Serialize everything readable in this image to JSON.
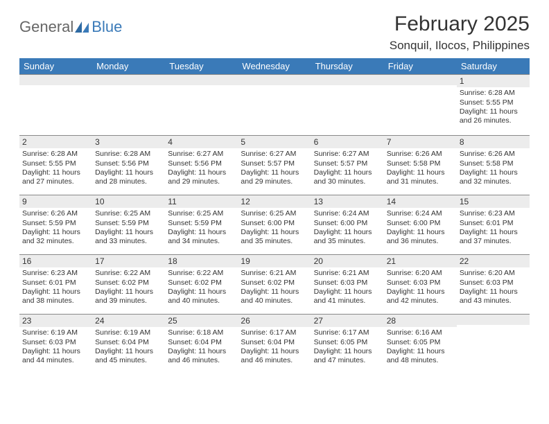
{
  "logo": {
    "general": "General",
    "blue": "Blue"
  },
  "title": "February 2025",
  "location": "Sonquil, Ilocos, Philippines",
  "colors": {
    "header_bg": "#3a7ab8",
    "header_text": "#ffffff",
    "daynum_bg": "#ececec",
    "text": "#333333",
    "rule": "#888888"
  },
  "weekdays": [
    "Sunday",
    "Monday",
    "Tuesday",
    "Wednesday",
    "Thursday",
    "Friday",
    "Saturday"
  ],
  "weeks": [
    [
      {
        "n": "",
        "sr": "",
        "ss": "",
        "dl": ""
      },
      {
        "n": "",
        "sr": "",
        "ss": "",
        "dl": ""
      },
      {
        "n": "",
        "sr": "",
        "ss": "",
        "dl": ""
      },
      {
        "n": "",
        "sr": "",
        "ss": "",
        "dl": ""
      },
      {
        "n": "",
        "sr": "",
        "ss": "",
        "dl": ""
      },
      {
        "n": "",
        "sr": "",
        "ss": "",
        "dl": ""
      },
      {
        "n": "1",
        "sr": "Sunrise: 6:28 AM",
        "ss": "Sunset: 5:55 PM",
        "dl": "Daylight: 11 hours and 26 minutes."
      }
    ],
    [
      {
        "n": "2",
        "sr": "Sunrise: 6:28 AM",
        "ss": "Sunset: 5:55 PM",
        "dl": "Daylight: 11 hours and 27 minutes."
      },
      {
        "n": "3",
        "sr": "Sunrise: 6:28 AM",
        "ss": "Sunset: 5:56 PM",
        "dl": "Daylight: 11 hours and 28 minutes."
      },
      {
        "n": "4",
        "sr": "Sunrise: 6:27 AM",
        "ss": "Sunset: 5:56 PM",
        "dl": "Daylight: 11 hours and 29 minutes."
      },
      {
        "n": "5",
        "sr": "Sunrise: 6:27 AM",
        "ss": "Sunset: 5:57 PM",
        "dl": "Daylight: 11 hours and 29 minutes."
      },
      {
        "n": "6",
        "sr": "Sunrise: 6:27 AM",
        "ss": "Sunset: 5:57 PM",
        "dl": "Daylight: 11 hours and 30 minutes."
      },
      {
        "n": "7",
        "sr": "Sunrise: 6:26 AM",
        "ss": "Sunset: 5:58 PM",
        "dl": "Daylight: 11 hours and 31 minutes."
      },
      {
        "n": "8",
        "sr": "Sunrise: 6:26 AM",
        "ss": "Sunset: 5:58 PM",
        "dl": "Daylight: 11 hours and 32 minutes."
      }
    ],
    [
      {
        "n": "9",
        "sr": "Sunrise: 6:26 AM",
        "ss": "Sunset: 5:59 PM",
        "dl": "Daylight: 11 hours and 32 minutes."
      },
      {
        "n": "10",
        "sr": "Sunrise: 6:25 AM",
        "ss": "Sunset: 5:59 PM",
        "dl": "Daylight: 11 hours and 33 minutes."
      },
      {
        "n": "11",
        "sr": "Sunrise: 6:25 AM",
        "ss": "Sunset: 5:59 PM",
        "dl": "Daylight: 11 hours and 34 minutes."
      },
      {
        "n": "12",
        "sr": "Sunrise: 6:25 AM",
        "ss": "Sunset: 6:00 PM",
        "dl": "Daylight: 11 hours and 35 minutes."
      },
      {
        "n": "13",
        "sr": "Sunrise: 6:24 AM",
        "ss": "Sunset: 6:00 PM",
        "dl": "Daylight: 11 hours and 35 minutes."
      },
      {
        "n": "14",
        "sr": "Sunrise: 6:24 AM",
        "ss": "Sunset: 6:00 PM",
        "dl": "Daylight: 11 hours and 36 minutes."
      },
      {
        "n": "15",
        "sr": "Sunrise: 6:23 AM",
        "ss": "Sunset: 6:01 PM",
        "dl": "Daylight: 11 hours and 37 minutes."
      }
    ],
    [
      {
        "n": "16",
        "sr": "Sunrise: 6:23 AM",
        "ss": "Sunset: 6:01 PM",
        "dl": "Daylight: 11 hours and 38 minutes."
      },
      {
        "n": "17",
        "sr": "Sunrise: 6:22 AM",
        "ss": "Sunset: 6:02 PM",
        "dl": "Daylight: 11 hours and 39 minutes."
      },
      {
        "n": "18",
        "sr": "Sunrise: 6:22 AM",
        "ss": "Sunset: 6:02 PM",
        "dl": "Daylight: 11 hours and 40 minutes."
      },
      {
        "n": "19",
        "sr": "Sunrise: 6:21 AM",
        "ss": "Sunset: 6:02 PM",
        "dl": "Daylight: 11 hours and 40 minutes."
      },
      {
        "n": "20",
        "sr": "Sunrise: 6:21 AM",
        "ss": "Sunset: 6:03 PM",
        "dl": "Daylight: 11 hours and 41 minutes."
      },
      {
        "n": "21",
        "sr": "Sunrise: 6:20 AM",
        "ss": "Sunset: 6:03 PM",
        "dl": "Daylight: 11 hours and 42 minutes."
      },
      {
        "n": "22",
        "sr": "Sunrise: 6:20 AM",
        "ss": "Sunset: 6:03 PM",
        "dl": "Daylight: 11 hours and 43 minutes."
      }
    ],
    [
      {
        "n": "23",
        "sr": "Sunrise: 6:19 AM",
        "ss": "Sunset: 6:03 PM",
        "dl": "Daylight: 11 hours and 44 minutes."
      },
      {
        "n": "24",
        "sr": "Sunrise: 6:19 AM",
        "ss": "Sunset: 6:04 PM",
        "dl": "Daylight: 11 hours and 45 minutes."
      },
      {
        "n": "25",
        "sr": "Sunrise: 6:18 AM",
        "ss": "Sunset: 6:04 PM",
        "dl": "Daylight: 11 hours and 46 minutes."
      },
      {
        "n": "26",
        "sr": "Sunrise: 6:17 AM",
        "ss": "Sunset: 6:04 PM",
        "dl": "Daylight: 11 hours and 46 minutes."
      },
      {
        "n": "27",
        "sr": "Sunrise: 6:17 AM",
        "ss": "Sunset: 6:05 PM",
        "dl": "Daylight: 11 hours and 47 minutes."
      },
      {
        "n": "28",
        "sr": "Sunrise: 6:16 AM",
        "ss": "Sunset: 6:05 PM",
        "dl": "Daylight: 11 hours and 48 minutes."
      },
      {
        "n": "",
        "sr": "",
        "ss": "",
        "dl": ""
      }
    ]
  ]
}
